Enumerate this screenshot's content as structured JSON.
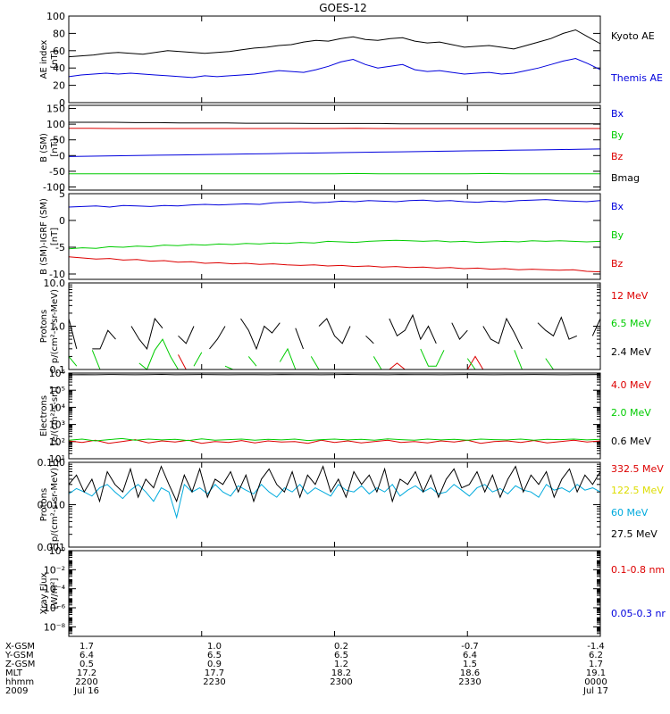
{
  "title": "GOES-12",
  "colors": {
    "black": "#000000",
    "blue": "#0000dd",
    "green": "#00cc00",
    "red": "#dd0000",
    "cyan": "#00aadd",
    "yellow": "#dddd00"
  },
  "chart_data": [
    {
      "type": "line",
      "ylabel": [
        "AE index",
        "[nT]"
      ],
      "yscale": "linear",
      "ylim": [
        0,
        100
      ],
      "yticks": [
        0,
        20,
        40,
        60,
        80,
        100
      ],
      "yticklabels": [
        "0",
        "20",
        "40",
        "60",
        "80",
        "100"
      ],
      "series": [
        {
          "name": "Kyoto AE",
          "color": "black",
          "values": [
            53,
            54,
            55,
            57,
            58,
            57,
            56,
            58,
            60,
            59,
            58,
            57,
            58,
            59,
            61,
            63,
            64,
            66,
            67,
            70,
            72,
            71,
            74,
            76,
            73,
            72,
            74,
            75,
            71,
            69,
            70,
            67,
            64,
            65,
            66,
            64,
            62,
            66,
            70,
            74,
            80,
            84,
            76,
            68
          ]
        },
        {
          "name": "Themis AE",
          "color": "blue",
          "values": [
            30,
            32,
            33,
            34,
            33,
            34,
            33,
            32,
            31,
            30,
            29,
            31,
            30,
            31,
            32,
            33,
            35,
            37,
            36,
            35,
            38,
            42,
            47,
            50,
            44,
            40,
            42,
            44,
            38,
            36,
            37,
            35,
            33,
            34,
            35,
            33,
            34,
            37,
            40,
            44,
            48,
            51,
            45,
            38
          ]
        }
      ]
    },
    {
      "type": "line",
      "ylabel": [
        "B (SM)",
        "[nT]"
      ],
      "yscale": "linear",
      "ylim": [
        -110,
        160
      ],
      "yticks": [
        -100,
        -50,
        0,
        50,
        100,
        150
      ],
      "yticklabels": [
        "-100",
        "-50",
        "0",
        "50",
        "100",
        "150"
      ],
      "series": [
        {
          "name": "Bx",
          "color": "blue",
          "values": [
            -3,
            -2,
            -1,
            0,
            1,
            2,
            3,
            4,
            5,
            6,
            7,
            8,
            9,
            10,
            11,
            12,
            13,
            14,
            15,
            16,
            17,
            18,
            19,
            20,
            21
          ]
        },
        {
          "name": "By",
          "color": "green",
          "values": [
            -58,
            -58,
            -58,
            -58,
            -58,
            -58,
            -58,
            -58,
            -58,
            -58,
            -58,
            -58,
            -58,
            -57,
            -58,
            -58,
            -58,
            -58,
            -58,
            -57,
            -58,
            -58,
            -58,
            -58,
            -58
          ]
        },
        {
          "name": "Bz",
          "color": "red",
          "values": [
            87,
            87,
            86,
            86,
            86,
            86,
            86,
            86,
            86,
            86,
            86,
            86,
            86,
            87,
            86,
            86,
            86,
            86,
            86,
            86,
            86,
            86,
            86,
            86,
            86
          ]
        },
        {
          "name": "Bmag",
          "color": "black",
          "values": [
            106,
            106,
            106,
            105,
            105,
            104,
            104,
            104,
            103,
            103,
            103,
            102,
            102,
            102,
            102,
            101,
            101,
            101,
            101,
            101,
            101,
            101,
            101,
            101,
            101
          ]
        }
      ]
    },
    {
      "type": "line",
      "ylabel": [
        "B (SM)-IGRF (SM)",
        "[nT]"
      ],
      "yscale": "linear",
      "ylim": [
        -11,
        5
      ],
      "yticks": [
        -10,
        -5,
        0,
        5
      ],
      "yticklabels": [
        "-10",
        "-5",
        "0",
        "5"
      ],
      "series": [
        {
          "name": "Bx",
          "color": "blue",
          "values": [
            2.5,
            2.6,
            2.7,
            2.5,
            2.8,
            2.7,
            2.6,
            2.8,
            2.7,
            2.9,
            3.0,
            2.9,
            3.0,
            3.1,
            3.0,
            3.3,
            3.4,
            3.5,
            3.3,
            3.4,
            3.6,
            3.5,
            3.7,
            3.6,
            3.5,
            3.7,
            3.8,
            3.6,
            3.7,
            3.5,
            3.4,
            3.6,
            3.5,
            3.7,
            3.8,
            3.9,
            3.7,
            3.6,
            3.5,
            3.7
          ]
        },
        {
          "name": "By",
          "color": "green",
          "values": [
            -5.3,
            -5.1,
            -5.2,
            -4.9,
            -5.0,
            -4.8,
            -4.9,
            -4.6,
            -4.7,
            -4.5,
            -4.6,
            -4.4,
            -4.5,
            -4.3,
            -4.4,
            -4.2,
            -4.3,
            -4.1,
            -4.2,
            -3.9,
            -4.0,
            -4.1,
            -3.9,
            -3.8,
            -3.7,
            -3.8,
            -3.9,
            -3.8,
            -4.0,
            -3.9,
            -4.1,
            -4.0,
            -3.9,
            -4.0,
            -3.8,
            -3.9,
            -3.8,
            -3.9,
            -4.0,
            -3.9
          ]
        },
        {
          "name": "Bz",
          "color": "red",
          "values": [
            -6.8,
            -7.0,
            -7.2,
            -7.1,
            -7.4,
            -7.3,
            -7.6,
            -7.5,
            -7.8,
            -7.7,
            -8.0,
            -7.9,
            -8.1,
            -8.0,
            -8.2,
            -8.1,
            -8.3,
            -8.4,
            -8.3,
            -8.5,
            -8.4,
            -8.6,
            -8.5,
            -8.7,
            -8.6,
            -8.8,
            -8.7,
            -8.9,
            -8.8,
            -9.0,
            -8.9,
            -9.1,
            -9.0,
            -9.2,
            -9.1,
            -9.2,
            -9.3,
            -9.2,
            -9.5,
            -9.6
          ]
        }
      ]
    },
    {
      "type": "line",
      "ylabel": [
        "Protons",
        "p/(cm²-s-sr-MeV)"
      ],
      "yscale": "log",
      "ylim": [
        0.1,
        10
      ],
      "yticks": [
        0.1,
        1,
        10
      ],
      "yticklabels": [
        "0.1",
        "1.0",
        "10.0"
      ],
      "series": [
        {
          "name": "12 MeV",
          "color": "red",
          "values": [
            null,
            null,
            null,
            null,
            null,
            null,
            null,
            null,
            null,
            0.1,
            null,
            null,
            null,
            null,
            0.22,
            0.1,
            null,
            null,
            null,
            null,
            null,
            null,
            null,
            null,
            null,
            null,
            0.12,
            null,
            null,
            null,
            null,
            0.1,
            null,
            null,
            null,
            null,
            null,
            null,
            null,
            null,
            null,
            0.1,
            0.14,
            0.1,
            null,
            null,
            null,
            null,
            null,
            null,
            null,
            0.1,
            0.2,
            0.1,
            null,
            null,
            null,
            null,
            null,
            null,
            null,
            null,
            null,
            null,
            null,
            null,
            null,
            null,
            null
          ]
        },
        {
          "name": "6.5 MeV",
          "color": "green",
          "values": [
            0.2,
            0.12,
            null,
            0.28,
            0.1,
            0.1,
            null,
            null,
            null,
            0.14,
            0.1,
            0.28,
            0.5,
            0.2,
            0.1,
            null,
            0.12,
            0.25,
            null,
            null,
            0.12,
            0.1,
            null,
            0.2,
            0.12,
            null,
            null,
            0.15,
            0.3,
            0.1,
            null,
            0.2,
            0.1,
            null,
            null,
            null,
            null,
            null,
            null,
            0.2,
            0.1,
            null,
            null,
            null,
            null,
            0.3,
            0.12,
            0.12,
            0.28,
            null,
            null,
            0.18,
            0.1,
            null,
            null,
            null,
            null,
            0.28,
            0.1,
            null,
            null,
            0.18,
            0.1,
            null,
            null,
            null,
            null,
            null,
            null
          ]
        },
        {
          "name": "2.4 MeV",
          "color": "black",
          "values": [
            1.5,
            0.3,
            null,
            0.3,
            0.3,
            0.8,
            0.5,
            null,
            1.0,
            0.5,
            0.3,
            1.5,
            0.9,
            null,
            0.6,
            0.4,
            1.0,
            null,
            0.3,
            0.5,
            1.0,
            null,
            1.5,
            0.8,
            0.3,
            1.0,
            0.7,
            1.2,
            null,
            0.9,
            0.3,
            null,
            1.0,
            1.5,
            0.6,
            0.4,
            1.0,
            null,
            0.6,
            0.4,
            null,
            1.5,
            0.6,
            0.8,
            1.8,
            0.5,
            1.0,
            0.4,
            null,
            1.2,
            0.5,
            0.8,
            null,
            1.0,
            0.5,
            0.4,
            1.5,
            0.7,
            0.3,
            null,
            1.2,
            0.8,
            0.6,
            1.6,
            0.5,
            0.6,
            null,
            0.6,
            1.5
          ]
        }
      ]
    },
    {
      "type": "line",
      "ylabel": [
        "Electrons",
        "[e/(cm²-s-sr)]"
      ],
      "yscale": "log",
      "ylim": [
        10,
        1000000
      ],
      "yticks": [
        10,
        100,
        1000,
        10000,
        100000,
        1000000
      ],
      "yticklabels": [
        "10¹",
        "10²",
        "10³",
        "10⁴",
        "10⁵",
        "10⁶"
      ],
      "series": [
        {
          "name": "4.0 MeV",
          "color": "red",
          "values": [
            110,
            90,
            120,
            80,
            100,
            130,
            85,
            110,
            95,
            120,
            80,
            100,
            90,
            115,
            85,
            110,
            95,
            100,
            80,
            120,
            90,
            110,
            85,
            100,
            120,
            90,
            100,
            85,
            110,
            95,
            120,
            80,
            100,
            110,
            90,
            115,
            85,
            100,
            120,
            95,
            110
          ]
        },
        {
          "name": "2.0 MeV",
          "color": "green",
          "values": [
            120,
            140,
            110,
            130,
            150,
            120,
            140,
            125,
            135,
            115,
            145,
            120,
            130,
            140,
            120,
            135,
            125,
            140,
            115,
            130,
            140,
            125,
            135,
            120,
            145,
            130,
            120,
            140,
            125,
            135,
            120,
            140,
            130,
            125,
            140,
            120,
            135,
            130,
            140,
            125,
            135
          ]
        },
        {
          "name": "0.6 MeV",
          "color": "black",
          "values": [
            800000,
            820000,
            800000,
            830000,
            810000,
            800000,
            820000,
            840000,
            800000,
            810000,
            830000,
            820000,
            800000,
            810000,
            820000,
            800000,
            830000,
            820000,
            810000,
            800000,
            820000,
            840000,
            820000,
            810000,
            800000,
            830000,
            820000,
            810000,
            800000,
            820000,
            830000,
            810000,
            800000,
            820000,
            810000,
            830000,
            820000,
            800000,
            810000,
            820000,
            830000
          ]
        }
      ]
    },
    {
      "type": "line",
      "ylabel": [
        "Protons",
        "[p/(cm²-s-sr-MeV)]"
      ],
      "yscale": "log",
      "ylim": [
        0.001,
        0.1
      ],
      "yticks": [
        0.001,
        0.01,
        0.1
      ],
      "yticklabels": [
        "0.001",
        "0.010",
        "0.100"
      ],
      "series": [
        {
          "name": "332.5 MeV",
          "color": "red",
          "values": []
        },
        {
          "name": "122.5 MeV",
          "color": "yellow",
          "values": []
        },
        {
          "name": "60 MeV",
          "color": "cyan",
          "values": [
            0.018,
            0.024,
            0.02,
            0.016,
            0.025,
            0.03,
            0.02,
            0.014,
            0.022,
            0.03,
            0.02,
            0.012,
            0.025,
            0.02,
            0.005,
            0.03,
            0.02,
            0.025,
            0.018,
            0.03,
            0.02,
            0.016,
            0.028,
            0.022,
            0.018,
            0.03,
            0.02,
            0.015,
            0.025,
            0.02,
            0.03,
            0.018,
            0.025,
            0.02,
            0.016,
            0.03,
            0.022,
            0.02,
            0.028,
            0.018,
            0.025,
            0.02,
            0.03,
            0.016,
            0.022,
            0.028,
            0.02,
            0.025,
            0.018,
            0.02,
            0.03,
            0.022,
            0.016,
            0.025,
            0.03,
            0.02,
            0.024,
            0.018,
            0.028,
            0.022,
            0.02,
            0.015,
            0.03,
            0.022,
            0.025,
            0.02,
            0.03,
            0.022,
            0.025,
            0.02
          ]
        },
        {
          "name": "27.5 MeV",
          "color": "black",
          "values": [
            0.03,
            0.05,
            0.02,
            0.04,
            0.012,
            0.06,
            0.03,
            0.02,
            0.07,
            0.015,
            0.04,
            0.025,
            0.08,
            0.03,
            0.012,
            0.05,
            0.02,
            0.07,
            0.015,
            0.04,
            0.03,
            0.06,
            0.02,
            0.05,
            0.012,
            0.04,
            0.07,
            0.03,
            0.02,
            0.06,
            0.015,
            0.05,
            0.03,
            0.08,
            0.02,
            0.04,
            0.015,
            0.06,
            0.03,
            0.05,
            0.02,
            0.07,
            0.012,
            0.04,
            0.03,
            0.06,
            0.02,
            0.05,
            0.015,
            0.04,
            0.07,
            0.025,
            0.03,
            0.06,
            0.02,
            0.05,
            0.015,
            0.04,
            0.08,
            0.02,
            0.05,
            0.03,
            0.06,
            0.015,
            0.04,
            0.07,
            0.02,
            0.05,
            0.03,
            0.06
          ]
        }
      ]
    },
    {
      "type": "line",
      "ylabel": [
        "Xray Flux",
        "[W/m²]"
      ],
      "yscale": "log",
      "ylim": [
        1e-09,
        1
      ],
      "yticks": [
        1e-08,
        1e-06,
        0.0001,
        0.01,
        1
      ],
      "yticklabels": [
        "10⁻⁸",
        "10⁻⁶",
        "10⁻⁴",
        "10⁻²",
        "10⁰"
      ],
      "series": [
        {
          "name": "0.1-0.8 nm",
          "color": "red",
          "values": []
        },
        {
          "name": "0.05-0.3 nr",
          "color": "blue",
          "values": []
        }
      ]
    }
  ],
  "footer": {
    "rows": [
      {
        "label": "X-GSM",
        "values": [
          "1.7",
          "1.0",
          "0.2",
          "-0.7",
          "-1.4"
        ]
      },
      {
        "label": "Y-GSM",
        "values": [
          "6.4",
          "6.5",
          "6.5",
          "6.4",
          "6.2"
        ]
      },
      {
        "label": "Z-GSM",
        "values": [
          "0.5",
          "0.9",
          "1.2",
          "1.5",
          "1.7"
        ]
      },
      {
        "label": "MLT",
        "values": [
          "17.2",
          "17.7",
          "18.2",
          "18.6",
          "19.1"
        ]
      },
      {
        "label": "hhmm",
        "values": [
          "2200",
          "2230",
          "2300",
          "2330",
          "0000"
        ]
      },
      {
        "label": "2009",
        "values": [
          "Jul 16",
          "",
          "",
          "",
          "Jul 17"
        ]
      }
    ]
  }
}
